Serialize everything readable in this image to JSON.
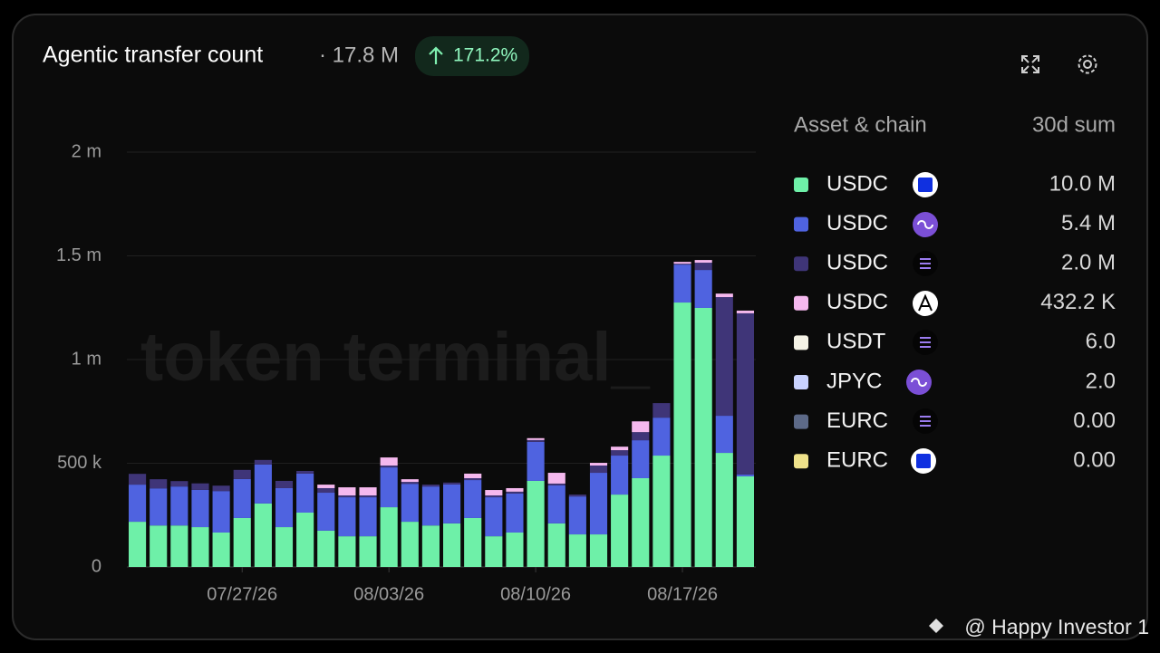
{
  "chart_data": {
    "type": "stacked_bar",
    "title": "Agentic transfer count",
    "total": "· 17.8 M",
    "change": "171.2%",
    "legend_header": "Asset & chain",
    "sum_header": "30d sum",
    "watermark": "token terminal_",
    "credit": "@ Happy Investor 1",
    "categories": [
      null,
      null,
      null,
      null,
      null,
      "07/27/26",
      null,
      null,
      null,
      null,
      null,
      null,
      "08/03/26",
      null,
      null,
      null,
      null,
      null,
      null,
      "08/10/26",
      null,
      null,
      null,
      null,
      null,
      null,
      "08/17/26",
      null,
      null,
      null
    ],
    "ylim": [
      0,
      2000000
    ],
    "yticks": [
      {
        "value": 0,
        "label": "0"
      },
      {
        "value": 500000,
        "label": "500 k"
      },
      {
        "value": 1000000,
        "label": "1 m"
      },
      {
        "value": 1500000,
        "label": "1.5 m"
      },
      {
        "value": 2000000,
        "label": "2 m"
      }
    ],
    "grid": true,
    "series": [
      {
        "name": "USDC",
        "color": "#6ef0a8",
        "sum": "10.0 M",
        "values": [
          218000,
          200000,
          200000,
          192000,
          166000,
          236000,
          306000,
          192000,
          262000,
          175000,
          148000,
          148000,
          288000,
          218000,
          200000,
          210000,
          236000,
          148000,
          166000,
          415000,
          210000,
          157000,
          157000,
          349000,
          428000,
          537000,
          1275000,
          1249000,
          550000,
          437000
        ]
      },
      {
        "name": "USDC",
        "color": "#4f63e0",
        "sum": "5.4 M",
        "values": [
          179000,
          179000,
          188000,
          180000,
          200000,
          188000,
          188000,
          188000,
          188000,
          183000,
          188000,
          188000,
          192000,
          183000,
          188000,
          188000,
          183000,
          188000,
          188000,
          188000,
          183000,
          183000,
          297000,
          188000,
          183000,
          183000,
          183000,
          183000,
          179000,
          9000
        ]
      },
      {
        "name": "USDC",
        "color": "#3f3578",
        "sum": "2.0 M",
        "values": [
          52000,
          44000,
          26000,
          31000,
          26000,
          44000,
          22000,
          35000,
          13000,
          22000,
          9000,
          9000,
          9000,
          9000,
          9000,
          9000,
          9000,
          9000,
          9000,
          9000,
          9000,
          9000,
          35000,
          26000,
          39000,
          70000,
          4000,
          35000,
          572000,
          777000
        ]
      },
      {
        "name": "USDC",
        "color": "#f5b8ee",
        "sum": "432.2 K",
        "values": [
          0,
          0,
          0,
          0,
          0,
          0,
          0,
          0,
          0,
          17000,
          39000,
          39000,
          39000,
          13000,
          0,
          0,
          22000,
          26000,
          17000,
          9000,
          52000,
          0,
          13000,
          17000,
          52000,
          0,
          9000,
          13000,
          17000,
          13000
        ]
      },
      {
        "name": "USDT",
        "color": "#f5f3e6",
        "sum": "6.0"
      },
      {
        "name": "JPYC",
        "color": "#c9d2ff",
        "sum": "2.0"
      },
      {
        "name": "EURC",
        "color": "#5d6a88",
        "sum": "0.00"
      },
      {
        "name": "EURC",
        "color": "#efe28a",
        "sum": "0.00"
      }
    ]
  }
}
